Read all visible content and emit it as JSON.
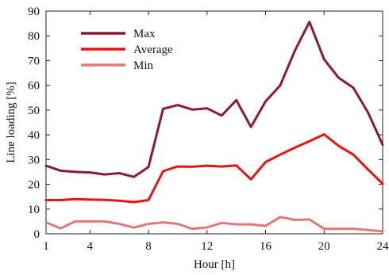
{
  "chart_data": {
    "type": "line",
    "xlabel": "Hour [h]",
    "ylabel": "Line loading [%]",
    "xlim": [
      1,
      24
    ],
    "ylim": [
      0,
      90
    ],
    "x_ticks": [
      1,
      4,
      8,
      12,
      16,
      20,
      24
    ],
    "y_ticks": [
      0,
      10,
      20,
      30,
      40,
      50,
      60,
      70,
      80,
      90
    ],
    "grid": false,
    "legend_position": "top-left",
    "x": [
      1,
      2,
      3,
      4,
      5,
      6,
      7,
      8,
      9,
      10,
      11,
      12,
      13,
      14,
      15,
      16,
      17,
      18,
      19,
      20,
      21,
      22,
      23,
      24
    ],
    "series": [
      {
        "name": "Max",
        "color": "#8b1a35",
        "values": [
          27.5,
          25.5,
          25,
          24.8,
          24,
          24.5,
          23,
          27,
          50.5,
          52,
          50.2,
          50.7,
          47.8,
          54,
          43.2,
          53.5,
          60,
          74,
          85.6,
          70.5,
          63,
          59,
          49,
          36
        ]
      },
      {
        "name": "Average",
        "color": "#ee1111",
        "values": [
          13.6,
          13.6,
          14,
          13.8,
          13.7,
          13.4,
          12.8,
          13.6,
          25.3,
          27.2,
          27.1,
          27.5,
          27.2,
          27.6,
          22,
          29,
          32,
          34.8,
          37.4,
          40.2,
          35.5,
          32,
          26,
          20.2
        ]
      },
      {
        "name": "Min",
        "color": "#e07878",
        "values": [
          4.6,
          2.2,
          5,
          5,
          5,
          4,
          2.5,
          4,
          4.6,
          4,
          2,
          2.6,
          4.4,
          3.8,
          3.8,
          3.2,
          6.8,
          5.6,
          5.8,
          2,
          2,
          2,
          1.5,
          1
        ]
      }
    ]
  }
}
